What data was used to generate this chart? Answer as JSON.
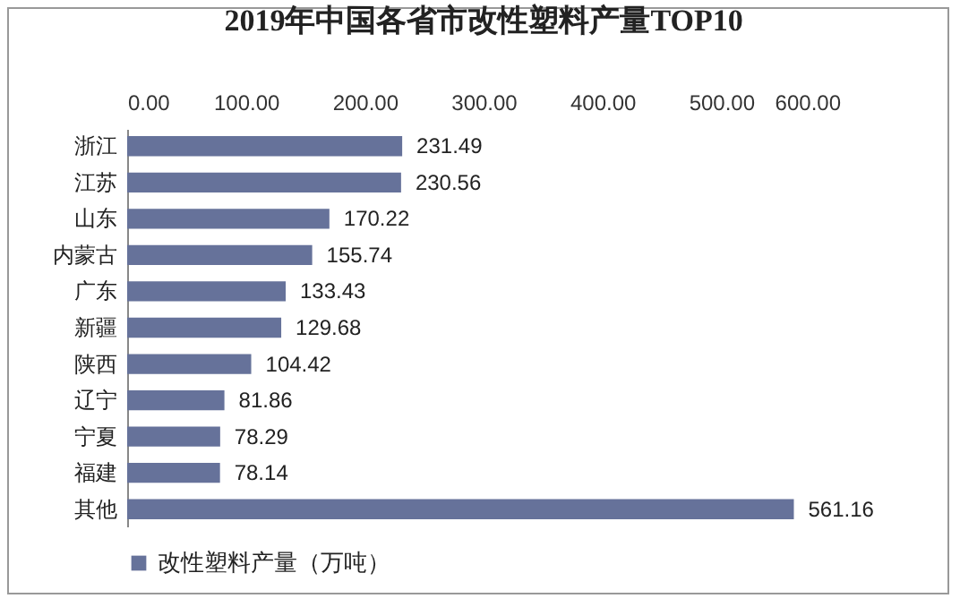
{
  "chart_data": {
    "type": "bar",
    "orientation": "horizontal",
    "title": "2019年中国各省市改性塑料产量TOP10",
    "categories": [
      "浙江",
      "江苏",
      "山东",
      "内蒙古",
      "广东",
      "新疆",
      "陕西",
      "辽宁",
      "宁夏",
      "福建",
      "其他"
    ],
    "series": [
      {
        "name": "改性塑料产量（万吨）",
        "color": "#66729a",
        "values": [
          231.49,
          230.56,
          170.22,
          155.74,
          133.43,
          129.68,
          104.42,
          81.86,
          78.29,
          78.14,
          561.16
        ]
      }
    ],
    "xlim": [
      0,
      600
    ],
    "xticks": [
      {
        "value": 0,
        "label": "0.00"
      },
      {
        "value": 100,
        "label": "100.00"
      },
      {
        "value": 200,
        "label": "200.00"
      },
      {
        "value": 300,
        "label": "300.00"
      },
      {
        "value": 400,
        "label": "400.00"
      },
      {
        "value": 500,
        "label": "500.00"
      },
      {
        "value": 600,
        "label": "600.00"
      }
    ],
    "data_labels": true,
    "legend": "bottom",
    "grid": false
  }
}
